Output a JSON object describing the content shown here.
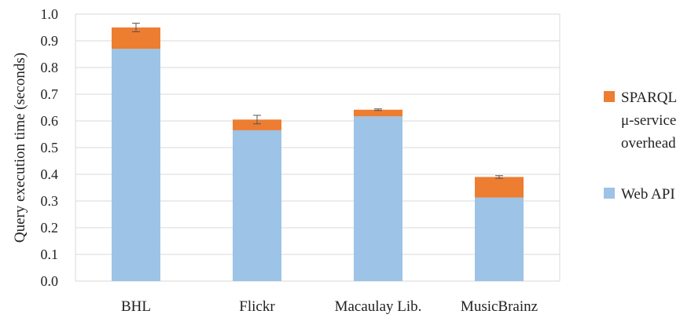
{
  "chart_data": {
    "type": "bar",
    "stacked": true,
    "categories": [
      "BHL",
      "Flickr",
      "Macaulay Lib.",
      "MusicBrainz"
    ],
    "series": [
      {
        "name": "Web API",
        "color": "#9dc3e6",
        "values": [
          0.87,
          0.565,
          0.617,
          0.313
        ]
      },
      {
        "name": "SPARQL μ-service overhead",
        "color": "#ed7d31",
        "values": [
          0.08,
          0.04,
          0.025,
          0.077
        ],
        "error": [
          0.016,
          0.016,
          0.003,
          0.005
        ]
      }
    ],
    "ylabel": "Query execution time (seconds)",
    "xlabel": "",
    "ylim": [
      0,
      1.0
    ],
    "yticks": [
      "0.0",
      "0.1",
      "0.2",
      "0.3",
      "0.4",
      "0.5",
      "0.6",
      "0.7",
      "0.8",
      "0.9",
      "1.0"
    ],
    "grid": true,
    "legend_position": "right"
  },
  "legend": {
    "items": [
      {
        "lines": [
          "SPARQL",
          "μ-service",
          "overhead"
        ],
        "color": "#ed7d31"
      },
      {
        "lines": [
          "Web API"
        ],
        "color": "#9dc3e6"
      }
    ]
  }
}
